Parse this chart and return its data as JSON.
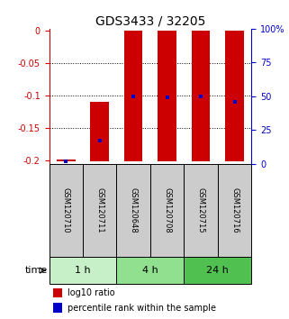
{
  "title": "GDS3433 / 32205",
  "samples": [
    "GSM120710",
    "GSM120711",
    "GSM120648",
    "GSM120708",
    "GSM120715",
    "GSM120716"
  ],
  "groups": [
    {
      "label": "1 h",
      "indices": [
        0,
        1
      ],
      "color": "#c8f0c8"
    },
    {
      "label": "4 h",
      "indices": [
        2,
        3
      ],
      "color": "#90e090"
    },
    {
      "label": "24 h",
      "indices": [
        4,
        5
      ],
      "color": "#50c050"
    }
  ],
  "log10_bottom": [
    -0.201,
    -0.201,
    -0.201,
    -0.201,
    -0.201,
    -0.201
  ],
  "log10_top": [
    -0.199,
    -0.109,
    0.0,
    0.0,
    0.0,
    0.0
  ],
  "percentile_rank_pct": [
    2,
    17,
    50,
    49,
    50,
    46
  ],
  "yticks": [
    0,
    -0.05,
    -0.1,
    -0.15,
    -0.2
  ],
  "ytick_labels": [
    "0",
    "-0.05",
    "-0.1",
    "-0.15",
    "-0.2"
  ],
  "right_ytick_pct": [
    100,
    75,
    50,
    25,
    0
  ],
  "right_ytick_labels": [
    "100%",
    "75",
    "50",
    "25",
    "0"
  ],
  "ymin": -0.205,
  "ymax": 0.003,
  "bar_color": "#cc0000",
  "dot_color": "#0000cc",
  "bar_width": 0.55,
  "legend_bar_color": "#cc0000",
  "legend_dot_color": "#0000cc",
  "legend_label_bar": "log10 ratio",
  "legend_label_dot": "percentile rank within the sample",
  "time_label": "time",
  "sample_box_color": "#cccccc",
  "left_axis_color": "#cc0000",
  "right_axis_color": "#0000cc",
  "title_fontsize": 10,
  "tick_fontsize": 7,
  "sample_fontsize": 6,
  "time_fontsize": 8,
  "legend_fontsize": 7
}
